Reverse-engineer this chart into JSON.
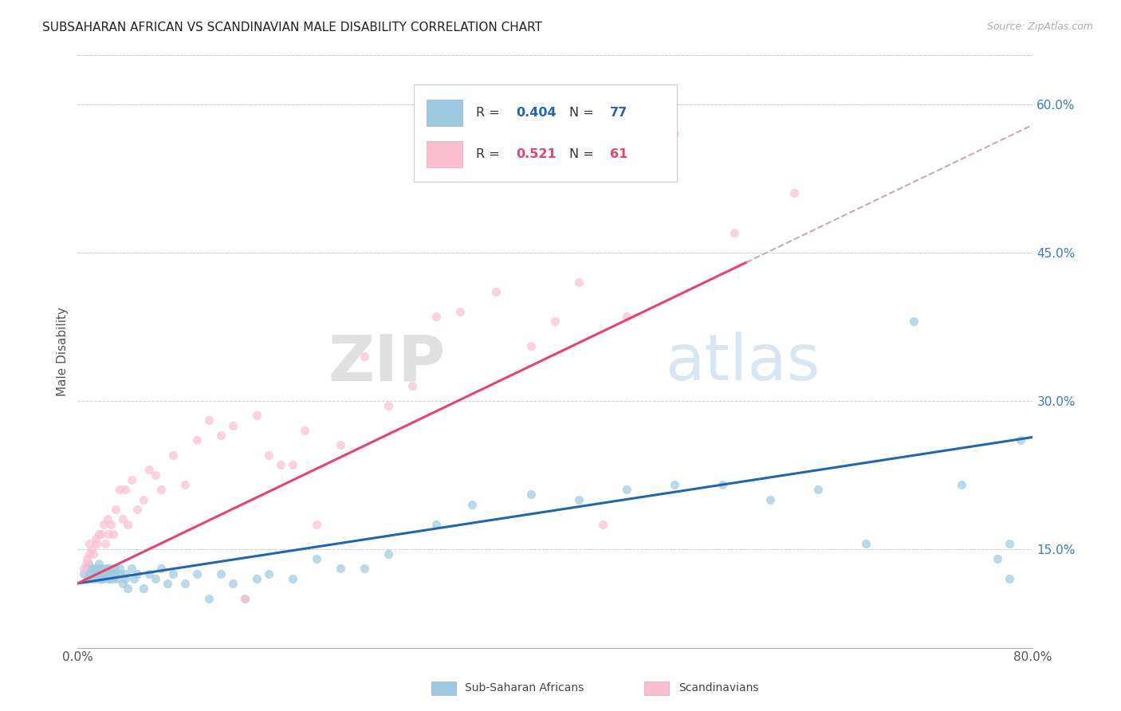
{
  "title": "SUBSAHARAN AFRICAN VS SCANDINAVIAN MALE DISABILITY CORRELATION CHART",
  "source": "Source: ZipAtlas.com",
  "ylabel": "Male Disability",
  "yticks": [
    "15.0%",
    "30.0%",
    "45.0%",
    "60.0%"
  ],
  "ytick_vals": [
    0.15,
    0.3,
    0.45,
    0.6
  ],
  "xmin": 0.0,
  "xmax": 0.8,
  "ymin": 0.05,
  "ymax": 0.65,
  "blue_color": "#9ecae1",
  "pink_color": "#fcbfd2",
  "blue_line_color": "#2166ac",
  "pink_line_color": "#e8436e",
  "blue_scatter_x": [
    0.005,
    0.007,
    0.008,
    0.009,
    0.01,
    0.01,
    0.012,
    0.013,
    0.014,
    0.015,
    0.015,
    0.016,
    0.017,
    0.018,
    0.018,
    0.019,
    0.02,
    0.02,
    0.021,
    0.022,
    0.023,
    0.024,
    0.025,
    0.025,
    0.026,
    0.027,
    0.028,
    0.029,
    0.03,
    0.03,
    0.031,
    0.032,
    0.033,
    0.035,
    0.035,
    0.038,
    0.04,
    0.04,
    0.042,
    0.045,
    0.047,
    0.05,
    0.055,
    0.06,
    0.065,
    0.07,
    0.075,
    0.08,
    0.09,
    0.1,
    0.11,
    0.12,
    0.13,
    0.14,
    0.15,
    0.16,
    0.18,
    0.2,
    0.22,
    0.24,
    0.26,
    0.3,
    0.33,
    0.38,
    0.42,
    0.46,
    0.5,
    0.54,
    0.58,
    0.62,
    0.66,
    0.7,
    0.74,
    0.77,
    0.78,
    0.78,
    0.79
  ],
  "blue_scatter_y": [
    0.125,
    0.13,
    0.12,
    0.135,
    0.125,
    0.13,
    0.12,
    0.125,
    0.13,
    0.12,
    0.125,
    0.13,
    0.125,
    0.12,
    0.135,
    0.125,
    0.12,
    0.13,
    0.12,
    0.125,
    0.13,
    0.125,
    0.12,
    0.125,
    0.13,
    0.12,
    0.125,
    0.13,
    0.12,
    0.125,
    0.13,
    0.125,
    0.12,
    0.125,
    0.13,
    0.115,
    0.12,
    0.125,
    0.11,
    0.13,
    0.12,
    0.125,
    0.11,
    0.125,
    0.12,
    0.13,
    0.115,
    0.125,
    0.115,
    0.125,
    0.1,
    0.125,
    0.115,
    0.1,
    0.12,
    0.125,
    0.12,
    0.14,
    0.13,
    0.13,
    0.145,
    0.175,
    0.195,
    0.205,
    0.2,
    0.21,
    0.215,
    0.215,
    0.2,
    0.21,
    0.155,
    0.38,
    0.215,
    0.14,
    0.12,
    0.155,
    0.26
  ],
  "pink_scatter_x": [
    0.005,
    0.007,
    0.008,
    0.01,
    0.01,
    0.012,
    0.013,
    0.015,
    0.016,
    0.018,
    0.02,
    0.022,
    0.023,
    0.025,
    0.026,
    0.028,
    0.03,
    0.032,
    0.035,
    0.038,
    0.04,
    0.042,
    0.045,
    0.05,
    0.055,
    0.06,
    0.065,
    0.07,
    0.08,
    0.09,
    0.1,
    0.11,
    0.12,
    0.13,
    0.14,
    0.15,
    0.16,
    0.17,
    0.18,
    0.19,
    0.2,
    0.22,
    0.24,
    0.26,
    0.28,
    0.3,
    0.32,
    0.35,
    0.38,
    0.4,
    0.42,
    0.44,
    0.46,
    0.5,
    0.55,
    0.6
  ],
  "pink_scatter_y": [
    0.13,
    0.135,
    0.14,
    0.145,
    0.155,
    0.15,
    0.145,
    0.16,
    0.155,
    0.165,
    0.165,
    0.175,
    0.155,
    0.18,
    0.165,
    0.175,
    0.165,
    0.19,
    0.21,
    0.18,
    0.21,
    0.175,
    0.22,
    0.19,
    0.2,
    0.23,
    0.225,
    0.21,
    0.245,
    0.215,
    0.26,
    0.28,
    0.265,
    0.275,
    0.1,
    0.285,
    0.245,
    0.235,
    0.235,
    0.27,
    0.175,
    0.255,
    0.345,
    0.295,
    0.315,
    0.385,
    0.39,
    0.41,
    0.355,
    0.38,
    0.42,
    0.175,
    0.385,
    0.57,
    0.47,
    0.51
  ],
  "blue_intercept": 0.115,
  "blue_slope": 0.185,
  "pink_intercept": 0.115,
  "pink_slope": 0.58
}
